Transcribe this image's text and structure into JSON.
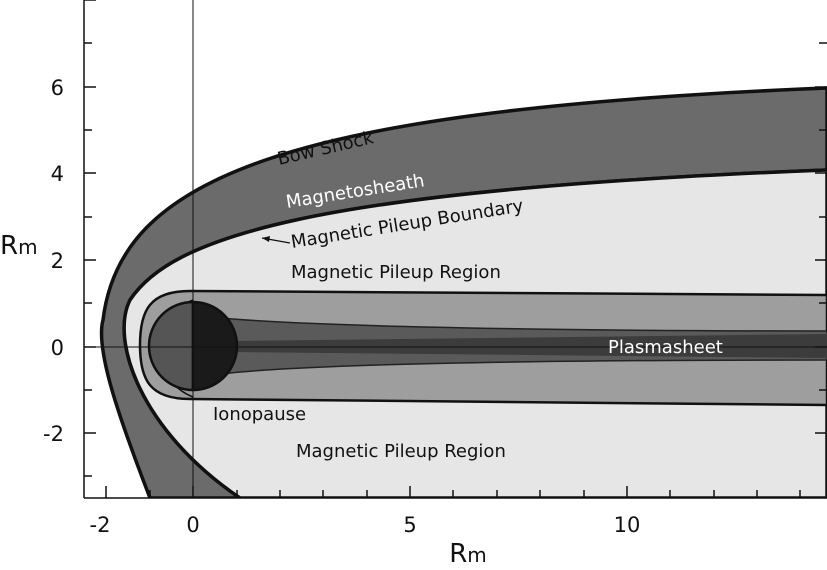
{
  "figure": {
    "x_axis_label": "Rm",
    "y_axis_label": "Rm",
    "x_ticks": [
      "-2",
      "0",
      "5",
      "10"
    ],
    "y_ticks": [
      "6",
      "4",
      "2",
      "0",
      "-2"
    ],
    "labels": {
      "bow_shock": "Bow Shock",
      "magnetosheath": "Magnetosheath",
      "magnetic_pileup_boundary": "Magnetic Pileup Boundary",
      "magnetic_pileup_region_upper": "Magnetic Pileup Region",
      "plasmasheet": "Plasmasheet",
      "ionopause": "Ionopause",
      "magnetic_pileup_region_lower": "Magnetic Pileup Region"
    }
  },
  "colors": {
    "magnetosheath": "#6b6b6b",
    "pileup_region": "#e6e6e6",
    "tail_outer": "#9e9e9e",
    "tail_inner": "#5a5a5a",
    "plasmasheet": "#3c3c3c",
    "planet_day": "#555555",
    "planet_night": "#1a1a1a"
  }
}
